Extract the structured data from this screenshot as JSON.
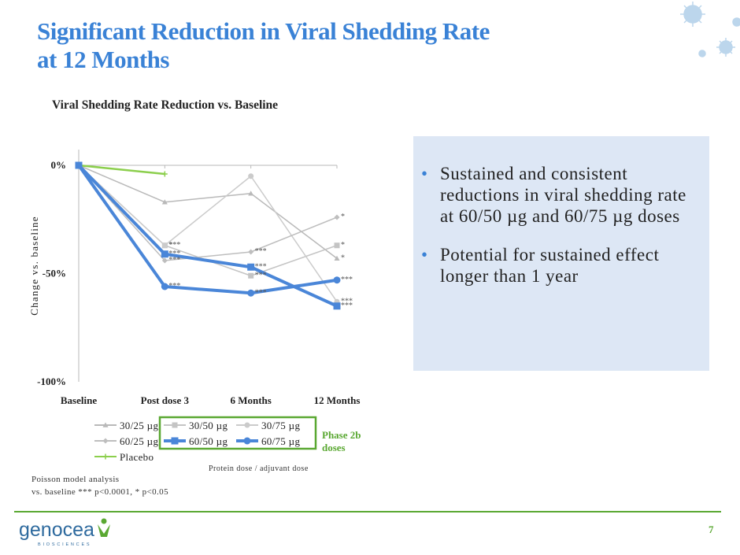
{
  "slide": {
    "title_line1": "Significant Reduction in Viral Shedding Rate",
    "title_line2": "at 12 Months",
    "phase_label_1": "Phase 2b",
    "phase_label_2": "doses",
    "legend_note": "Protein dose / adjuvant dose",
    "footnote_line1": "Poisson model analysis",
    "footnote_line2": "vs. baseline *** p<0.0001, * p<0.05",
    "bullets": [
      "Sustained and consistent reductions in viral shedding rate at 60/50 µg and 60/75 µg doses",
      "Potential for sustained effect longer than 1 year"
    ],
    "logo_text": "genocea",
    "logo_subtext": "BIOSCIENCES",
    "page_number": "7",
    "accent_color": "#3a82d6",
    "brand_green": "#5aa832"
  },
  "chart_data": {
    "type": "line",
    "title": "Viral Shedding Rate Reduction vs. Baseline",
    "xlabel": "",
    "ylabel": "Change vs. baseline",
    "categories": [
      "Baseline",
      "Post dose 3",
      "6 Months",
      "12 Months"
    ],
    "yticks": [
      "0%",
      "-50%",
      "-100%"
    ],
    "ylim": [
      -100,
      0
    ],
    "grid": false,
    "legend_position": "bottom",
    "series": [
      {
        "name": "30/25 µg",
        "values": [
          0,
          -17,
          -13,
          -43
        ],
        "color": "#b9b9b9",
        "marker": "triangle",
        "width": 1.5,
        "sig": [
          "",
          "",
          "",
          "*"
        ]
      },
      {
        "name": "30/50 µg",
        "values": [
          0,
          -37,
          -51,
          -37
        ],
        "color": "#c4c4c4",
        "marker": "square",
        "width": 1.5,
        "sig": [
          "",
          "***",
          "***",
          "*"
        ]
      },
      {
        "name": "30/75 µg",
        "values": [
          0,
          -37,
          -5,
          -63
        ],
        "color": "#cbcbcb",
        "marker": "circle",
        "width": 1.5,
        "sig": [
          "",
          "*",
          "",
          "***"
        ]
      },
      {
        "name": "60/25 µg",
        "values": [
          0,
          -44,
          -40,
          -24
        ],
        "color": "#bebebe",
        "marker": "diamond",
        "width": 1.5,
        "sig": [
          "",
          "***",
          "***",
          "*"
        ]
      },
      {
        "name": "60/50 µg",
        "values": [
          0,
          -41,
          -47,
          -65
        ],
        "color": "#4a86d8",
        "marker": "square",
        "width": 4,
        "sig": [
          "",
          "***",
          "***",
          "***"
        ]
      },
      {
        "name": "60/75 µg",
        "values": [
          0,
          -56,
          -59,
          -53
        ],
        "color": "#4a86d8",
        "marker": "circle",
        "width": 4,
        "sig": [
          "",
          "***",
          "***",
          "***"
        ]
      },
      {
        "name": "Placebo",
        "values": [
          0,
          -4,
          null,
          null
        ],
        "color": "#8ccf4d",
        "marker": "plus",
        "width": 2.5,
        "sig": [
          "",
          "",
          "",
          ""
        ]
      }
    ]
  }
}
